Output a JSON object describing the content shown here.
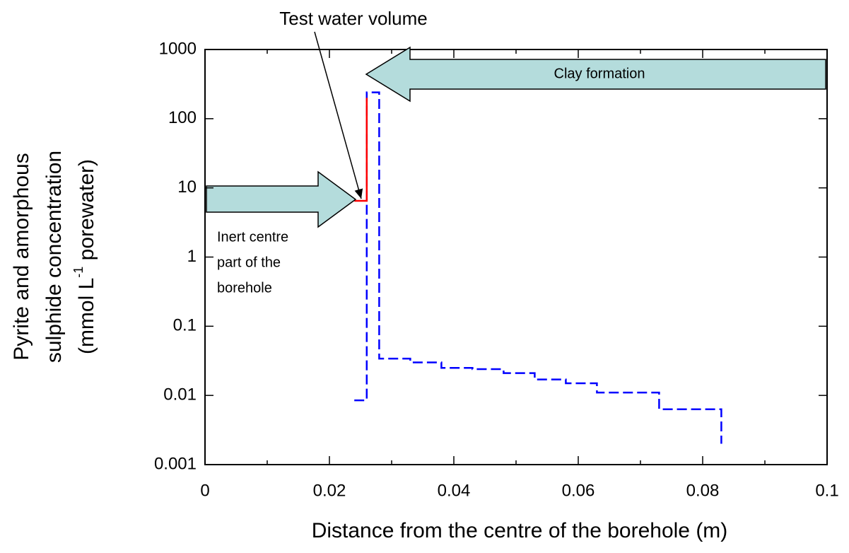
{
  "chart_data": {
    "type": "line",
    "xlabel": "Distance from the centre of the borehole (m)",
    "ylabel_lines": [
      "Pyrite and amorphous",
      "sulphide concentration"
    ],
    "ylabel_unit": {
      "before": "(mmol L",
      "superscript": "-1",
      "after": " porewater)"
    },
    "annotations": {
      "test_water": "Test water volume",
      "clay": "Clay formation",
      "inert": [
        "Inert centre",
        "part of the",
        "borehole"
      ]
    },
    "log_y": true,
    "xlim": [
      0,
      0.1
    ],
    "xticks": [
      0,
      0.02,
      0.04,
      0.06,
      0.08,
      0.1
    ],
    "xminorticks": [
      0.01,
      0.03,
      0.05,
      0.07,
      0.09
    ],
    "ylim": [
      0.001,
      1000
    ],
    "yticks": [
      0.001,
      0.01,
      0.1,
      1,
      10,
      100,
      1000
    ],
    "series": [
      {
        "color": "#0000ff",
        "dash": true,
        "x": [
          0.024,
          0.026,
          0.026,
          0.028,
          0.028,
          0.033,
          0.033,
          0.038,
          0.038,
          0.043,
          0.043,
          0.048,
          0.048,
          0.053,
          0.053,
          0.058,
          0.058,
          0.063,
          0.063,
          0.073,
          0.073,
          0.083,
          0.083
        ],
        "values": [
          0.0085,
          0.0085,
          240,
          240,
          0.034,
          0.034,
          0.03,
          0.03,
          0.025,
          0.025,
          0.024,
          0.024,
          0.021,
          0.021,
          0.017,
          0.017,
          0.015,
          0.015,
          0.011,
          0.011,
          0.0063,
          0.0063,
          0.002
        ]
      },
      {
        "color": "#ff0000",
        "dash": false,
        "x": [
          0.024,
          0.026,
          0.026
        ],
        "values": [
          6.5,
          6.5,
          200
        ]
      }
    ]
  }
}
